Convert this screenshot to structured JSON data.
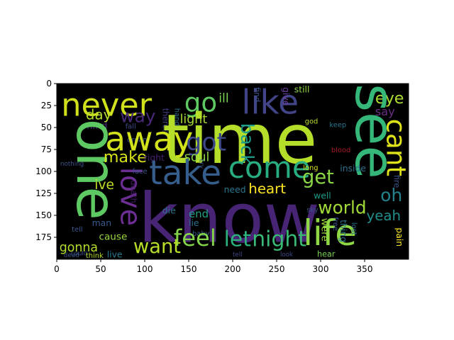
{
  "chart_data": {
    "type": "wordcloud_image",
    "title": "",
    "xlabel": "",
    "ylabel": "",
    "xlim": [
      0,
      400
    ],
    "ylim": [
      200,
      0
    ],
    "x_ticks": [
      0,
      50,
      100,
      150,
      200,
      250,
      300,
      350
    ],
    "y_ticks": [
      0,
      25,
      50,
      75,
      100,
      125,
      150,
      175
    ],
    "background": "#000000",
    "words": [
      {
        "text": "never",
        "x": 5,
        "y": 8,
        "size": 36,
        "color": "#d0e11c",
        "rot": 0
      },
      {
        "text": "go",
        "x": 145,
        "y": 8,
        "size": 30,
        "color": "#5ec962",
        "rot": 0
      },
      {
        "text": "like",
        "x": 210,
        "y": 4,
        "size": 38,
        "color": "#414487",
        "rot": 0
      },
      {
        "text": "eye",
        "x": 362,
        "y": 8,
        "size": 18,
        "color": "#addc30",
        "rot": 0
      },
      {
        "text": "see",
        "x": 325,
        "y": 0,
        "size": 62,
        "color": "#35b779",
        "rot": 90
      },
      {
        "text": "say",
        "x": 362,
        "y": 26,
        "size": 13,
        "color": "#6a2f86",
        "rot": 0
      },
      {
        "text": "ill",
        "x": 184,
        "y": 10,
        "size": 14,
        "color": "#7ad151",
        "rot": 0
      },
      {
        "text": "find",
        "x": 222,
        "y": 4,
        "size": 9,
        "color": "#3b528b",
        "rot": 90
      },
      {
        "text": "give",
        "x": 255,
        "y": 4,
        "size": 10,
        "color": "#6b40a0",
        "rot": 90
      },
      {
        "text": "still",
        "x": 270,
        "y": 2,
        "size": 10,
        "color": "#8fd744",
        "rot": 0
      },
      {
        "text": "way",
        "x": 72,
        "y": 28,
        "size": 20,
        "color": "#482878",
        "rot": 0
      },
      {
        "text": "day",
        "x": 33,
        "y": 28,
        "size": 16,
        "color": "#b5de2b",
        "rot": 0
      },
      {
        "text": "light",
        "x": 140,
        "y": 34,
        "size": 14,
        "color": "#a8db34",
        "rot": 0
      },
      {
        "text": "mind",
        "x": 30,
        "y": 43,
        "size": 11,
        "color": "#46307e",
        "rot": 0
      },
      {
        "text": "fall",
        "x": 78,
        "y": 45,
        "size": 8,
        "color": "#3e4a89",
        "rot": 0
      },
      {
        "text": "dream",
        "x": 80,
        "y": 60,
        "size": 8,
        "color": "#375a8c",
        "rot": 0
      },
      {
        "text": "theres",
        "x": 118,
        "y": 28,
        "size": 9,
        "color": "#433e85",
        "rot": 90
      },
      {
        "text": "hand",
        "x": 132,
        "y": 28,
        "size": 8,
        "color": "#2d708e",
        "rot": 90
      },
      {
        "text": "one",
        "x": 8,
        "y": 40,
        "size": 62,
        "color": "#5ec962",
        "rot": 90
      },
      {
        "text": "time",
        "x": 120,
        "y": 28,
        "size": 78,
        "color": "#b5de2b",
        "rot": 0
      },
      {
        "text": "away",
        "x": 55,
        "y": 46,
        "size": 38,
        "color": "#d2e21b",
        "rot": 0
      },
      {
        "text": "got",
        "x": 147,
        "y": 54,
        "size": 28,
        "color": "#3e4989",
        "rot": 0
      },
      {
        "text": "back",
        "x": 205,
        "y": 45,
        "size": 20,
        "color": "#1f9e89",
        "rot": 90
      },
      {
        "text": "cant",
        "x": 368,
        "y": 40,
        "size": 30,
        "color": "#dde318",
        "rot": 90
      },
      {
        "text": "god",
        "x": 282,
        "y": 39,
        "size": 8,
        "color": "#b8de29",
        "rot": 0
      },
      {
        "text": "keep",
        "x": 310,
        "y": 43,
        "size": 8,
        "color": "#2a768e",
        "rot": 0
      },
      {
        "text": "make",
        "x": 53,
        "y": 75,
        "size": 18,
        "color": "#d8e219",
        "rot": 0
      },
      {
        "text": "right",
        "x": 99,
        "y": 80,
        "size": 10,
        "color": "#481f70",
        "rot": 0
      },
      {
        "text": "soul",
        "x": 145,
        "y": 77,
        "size": 14,
        "color": "#8bd646",
        "rot": 0
      },
      {
        "text": "blood",
        "x": 312,
        "y": 72,
        "size": 8,
        "color": "#a51c26",
        "rot": 0
      },
      {
        "text": "love",
        "x": 65,
        "y": 95,
        "size": 32,
        "color": "#6c2e92",
        "rot": 90
      },
      {
        "text": "nothing",
        "x": 4,
        "y": 88,
        "size": 7,
        "color": "#3b518a",
        "rot": 0
      },
      {
        "text": "face",
        "x": 86,
        "y": 96,
        "size": 8,
        "color": "#3a548c",
        "rot": 0
      },
      {
        "text": "take",
        "x": 105,
        "y": 84,
        "size": 38,
        "color": "#355e8d",
        "rot": 0
      },
      {
        "text": "cry",
        "x": 160,
        "y": 86,
        "size": 7,
        "color": "#38568b",
        "rot": 90
      },
      {
        "text": "come",
        "x": 195,
        "y": 80,
        "size": 34,
        "color": "#27ad81",
        "rot": 0
      },
      {
        "text": "get",
        "x": 279,
        "y": 96,
        "size": 22,
        "color": "#8bd646",
        "rot": 0
      },
      {
        "text": "long",
        "x": 280,
        "y": 92,
        "size": 8,
        "color": "#d8e219",
        "rot": 0
      },
      {
        "text": "inside",
        "x": 322,
        "y": 92,
        "size": 10,
        "color": "#2d708e",
        "rot": 0
      },
      {
        "text": "ive",
        "x": 43,
        "y": 108,
        "size": 15,
        "color": "#c0df25",
        "rot": 0
      },
      {
        "text": "death",
        "x": 82,
        "y": 110,
        "size": 9,
        "color": "#481c6e",
        "rot": 90
      },
      {
        "text": "need",
        "x": 190,
        "y": 116,
        "size": 10,
        "color": "#2a778e",
        "rot": 0
      },
      {
        "text": "heart",
        "x": 218,
        "y": 112,
        "size": 16,
        "color": "#fde725",
        "rot": 0
      },
      {
        "text": "oh",
        "x": 368,
        "y": 118,
        "size": 20,
        "color": "#25838e",
        "rot": 0
      },
      {
        "text": "fire",
        "x": 381,
        "y": 104,
        "size": 9,
        "color": "#39558c",
        "rot": 90
      },
      {
        "text": "well",
        "x": 292,
        "y": 123,
        "size": 10,
        "color": "#1e9c89",
        "rot": 0
      },
      {
        "text": "know",
        "x": 93,
        "y": 118,
        "size": 78,
        "color": "#482475",
        "rot": 0
      },
      {
        "text": "world",
        "x": 297,
        "y": 132,
        "size": 20,
        "color": "#a2da37",
        "rot": 0
      },
      {
        "text": "sky",
        "x": 284,
        "y": 140,
        "size": 8,
        "color": "#3b518a",
        "rot": 0
      },
      {
        "text": "die",
        "x": 120,
        "y": 140,
        "size": 10,
        "color": "#2c728e",
        "rot": 0
      },
      {
        "text": "end",
        "x": 150,
        "y": 143,
        "size": 12,
        "color": "#1fa188",
        "rot": 0
      },
      {
        "text": "yeah",
        "x": 352,
        "y": 143,
        "size": 16,
        "color": "#21908d",
        "rot": 0
      },
      {
        "text": "lie",
        "x": 150,
        "y": 154,
        "size": 10,
        "color": "#2e6e8e",
        "rot": 0
      },
      {
        "text": "life",
        "x": 280,
        "y": 152,
        "size": 40,
        "color": "#8fd744",
        "rot": 0
      },
      {
        "text": "man",
        "x": 40,
        "y": 154,
        "size": 10,
        "color": "#38598c",
        "rot": 0
      },
      {
        "text": "tell",
        "x": 17,
        "y": 162,
        "size": 8,
        "color": "#39568c",
        "rot": 0
      },
      {
        "text": "baby",
        "x": 154,
        "y": 167,
        "size": 8,
        "color": "#35608d",
        "rot": 0
      },
      {
        "text": "were",
        "x": 298,
        "y": 153,
        "size": 11,
        "color": "#9dd93b",
        "rot": 90
      },
      {
        "text": "free",
        "x": 312,
        "y": 152,
        "size": 8,
        "color": "#3a548c",
        "rot": 90
      },
      {
        "text": "thing",
        "x": 320,
        "y": 155,
        "size": 10,
        "color": "#2c738e",
        "rot": 90
      },
      {
        "text": "lost",
        "x": 333,
        "y": 158,
        "size": 8,
        "color": "#2e6f8e",
        "rot": 90
      },
      {
        "text": "cause",
        "x": 48,
        "y": 169,
        "size": 11,
        "color": "#9bd93c",
        "rot": 0
      },
      {
        "text": "feel",
        "x": 133,
        "y": 164,
        "size": 26,
        "color": "#84d44b",
        "rot": 0
      },
      {
        "text": "let",
        "x": 190,
        "y": 166,
        "size": 24,
        "color": "#2db27d",
        "rot": 0
      },
      {
        "text": "night",
        "x": 222,
        "y": 166,
        "size": 24,
        "color": "#3aba76",
        "rot": 0
      },
      {
        "text": "pain",
        "x": 384,
        "y": 164,
        "size": 10,
        "color": "#fde725",
        "rot": 90
      },
      {
        "text": "gonna",
        "x": 3,
        "y": 180,
        "size": 14,
        "color": "#b5de2b",
        "rot": 0
      },
      {
        "text": "want",
        "x": 87,
        "y": 175,
        "size": 22,
        "color": "#b8de29",
        "rot": 0
      },
      {
        "text": "could",
        "x": 16,
        "y": 190,
        "size": 7,
        "color": "#3b528b",
        "rot": 0
      },
      {
        "text": "think",
        "x": 33,
        "y": 192,
        "size": 8,
        "color": "#b5de2b",
        "rot": 0
      },
      {
        "text": "live",
        "x": 57,
        "y": 190,
        "size": 10,
        "color": "#2a788e",
        "rot": 0
      },
      {
        "text": "tell",
        "x": 200,
        "y": 191,
        "size": 7,
        "color": "#404688",
        "rot": 0
      },
      {
        "text": "look",
        "x": 254,
        "y": 191,
        "size": 7,
        "color": "#3e4a89",
        "rot": 0
      },
      {
        "text": "hear",
        "x": 296,
        "y": 190,
        "size": 9,
        "color": "#75d054",
        "rot": 0
      },
      {
        "text": "dead",
        "x": 8,
        "y": 192,
        "size": 7,
        "color": "#3a548c",
        "rot": 0
      }
    ]
  }
}
